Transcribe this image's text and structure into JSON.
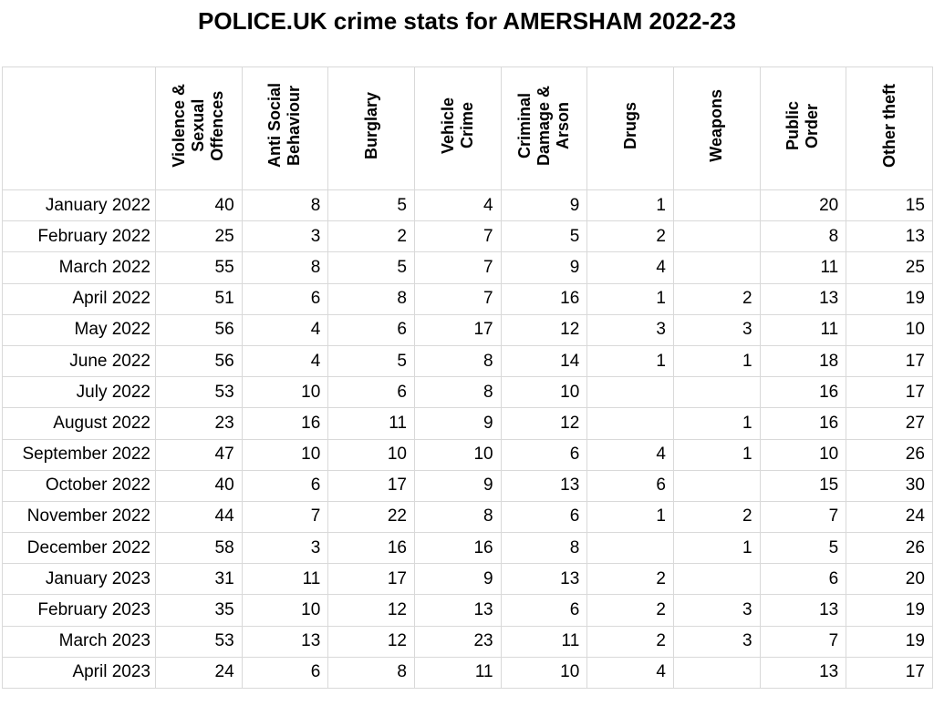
{
  "title": "POLICE.UK crime stats for AMERSHAM 2022-23",
  "table": {
    "headers": [
      [
        "Violence &",
        "Sexual",
        "Offences"
      ],
      [
        "Anti Social",
        "Behaviour"
      ],
      [
        "Burglary"
      ],
      [
        "Vehicle",
        "Crime"
      ],
      [
        "Criminal",
        "Damage &",
        "Arson"
      ],
      [
        "Drugs"
      ],
      [
        "Weapons"
      ],
      [
        "Public",
        "Order"
      ],
      [
        "Other theft"
      ]
    ],
    "rows": [
      [
        "January 2022",
        40,
        8,
        5,
        4,
        9,
        1,
        null,
        20,
        15
      ],
      [
        "February 2022",
        25,
        3,
        2,
        7,
        5,
        2,
        null,
        8,
        13
      ],
      [
        "March 2022",
        55,
        8,
        5,
        7,
        9,
        4,
        null,
        11,
        25
      ],
      [
        "April 2022",
        51,
        6,
        8,
        7,
        16,
        1,
        2,
        13,
        19
      ],
      [
        "May 2022",
        56,
        4,
        6,
        17,
        12,
        3,
        3,
        11,
        10
      ],
      [
        "June 2022",
        56,
        4,
        5,
        8,
        14,
        1,
        1,
        18,
        17
      ],
      [
        "July 2022",
        53,
        10,
        6,
        8,
        10,
        null,
        null,
        16,
        17
      ],
      [
        "August 2022",
        23,
        16,
        11,
        9,
        12,
        null,
        1,
        16,
        27
      ],
      [
        "September 2022",
        47,
        10,
        10,
        10,
        6,
        4,
        1,
        10,
        26
      ],
      [
        "October 2022",
        40,
        6,
        17,
        9,
        13,
        6,
        null,
        15,
        30
      ],
      [
        "November 2022",
        44,
        7,
        22,
        8,
        6,
        1,
        2,
        7,
        24
      ],
      [
        "December 2022",
        58,
        3,
        16,
        16,
        8,
        null,
        1,
        5,
        26
      ],
      [
        "January 2023",
        31,
        11,
        17,
        9,
        13,
        2,
        null,
        6,
        20
      ],
      [
        "February 2023",
        35,
        10,
        12,
        13,
        6,
        2,
        3,
        13,
        19
      ],
      [
        "March 2023",
        53,
        13,
        12,
        23,
        11,
        2,
        3,
        7,
        19
      ],
      [
        "April 2023",
        24,
        6,
        8,
        11,
        10,
        4,
        null,
        13,
        17
      ]
    ]
  }
}
